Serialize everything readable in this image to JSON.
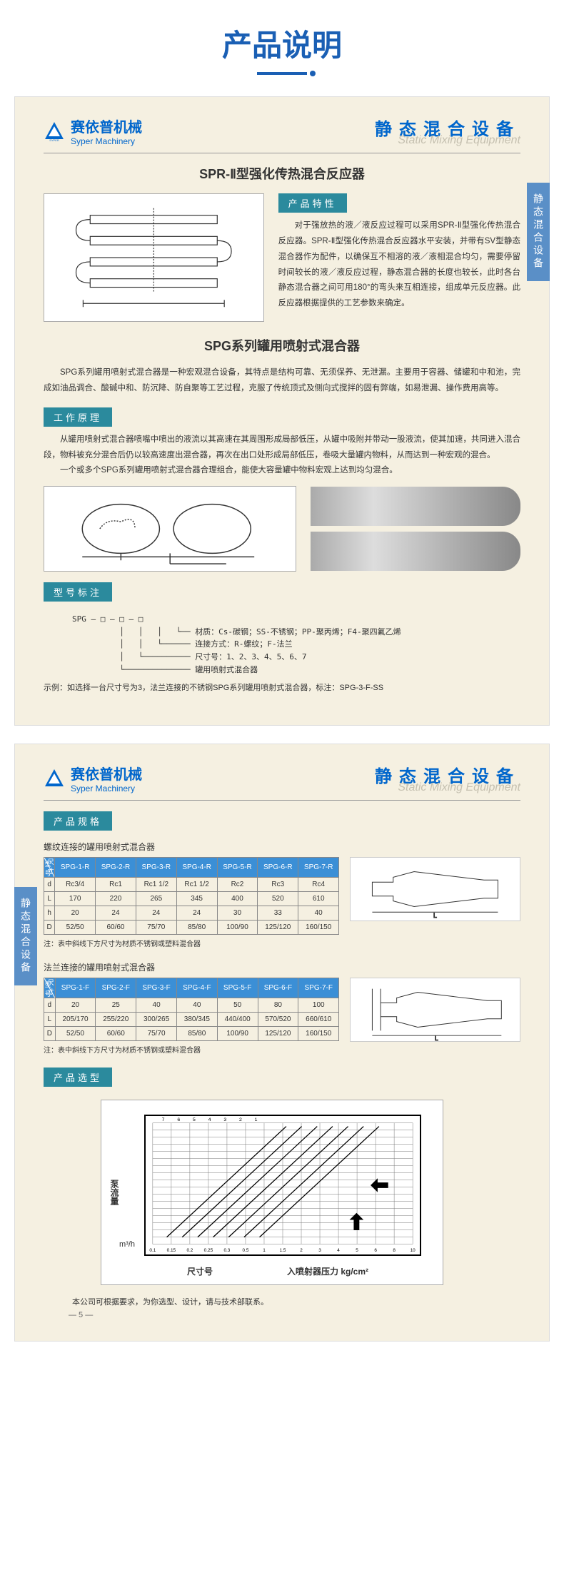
{
  "page_title": "产品说明",
  "company": {
    "name_cn": "赛依普机械",
    "name_en": "Syper Machinery",
    "label": "SYPER"
  },
  "header_title": {
    "cn": "静态混合设备",
    "en": "Static Mixing Equipment"
  },
  "side_tab": "静态混合设备",
  "page1": {
    "product_title": "SPR-Ⅱ型强化传热混合反应器",
    "features_label": "产品特性",
    "features_text": "对于强放热的液／液反应过程可以采用SPR-Ⅱ型强化传热混合反应器。SPR-Ⅱ型强化传热混合反应器水平安装，并带有SV型静态混合器作为配件，以确保互不相溶的液／液相混合均匀，需要停留时间较长的液／液反应过程，静态混合器的长度也较长，此时各台静态混合器之间可用180°的弯头来互相连接，组成单元反应器。此反应器根据提供的工艺参数来确定。",
    "spg_title": "SPG系列罐用喷射式混合器",
    "spg_intro": "SPG系列罐用喷射式混合器是一种宏观混合设备，其特点是结构可靠、无须保养、无泄漏。主要用于容器、储罐和中和池，完成如油品调合、酸碱中和、防沉降、防自聚等工艺过程，克服了传统顶式及侧向式搅拌的固有弊端，如易泄漏、操作费用高等。",
    "working_label": "工作原理",
    "working_text1": "从罐用喷射式混合器喷嘴中喷出的液流以其高速在其周围形成局部低压，从罐中吸附并带动一股液流，使其加速，共同进入混合段，物料被充分混合后仍以较高速度出混合器，再次在出口处形成局部低压，卷吸大量罐内物料，从而达到一种宏观的混合。",
    "working_text2": "一个或多个SPG系列罐用喷射式混合器合理组合，能使大容量罐中物料宏观上达到均匀混合。",
    "model_label": "型号标注",
    "model_base": "SPG",
    "model_lines": [
      "材质：Cs-碳钢；SS-不锈钢；PP-聚丙烯；F4-聚四氟乙烯",
      "连接方式：R-螺纹；F-法兰",
      "尺寸号：1、2、3、4、5、6、7",
      "罐用喷射式混合器"
    ],
    "model_example": "示例：如选择一台尺寸号为3，法兰连接的不锈钢SPG系列罐用喷射式混合器，标注：SPG-3-F-SS"
  },
  "page2": {
    "spec_label": "产品规格",
    "table1": {
      "title": "螺纹连接的罐用喷射式混合器",
      "head_type": "型号",
      "head_dim": "尺寸",
      "cols": [
        "SPG-1-R",
        "SPG-2-R",
        "SPG-3-R",
        "SPG-4-R",
        "SPG-5-R",
        "SPG-6-R",
        "SPG-7-R"
      ],
      "rows": [
        {
          "k": "d",
          "v": [
            "Rc3/4",
            "Rc1",
            "Rc1 1/2",
            "Rc1 1/2",
            "Rc2",
            "Rc3",
            "Rc4"
          ]
        },
        {
          "k": "L",
          "v": [
            "170",
            "220",
            "265",
            "345",
            "400",
            "520",
            "610"
          ]
        },
        {
          "k": "h",
          "v": [
            "20",
            "24",
            "24",
            "24",
            "30",
            "33",
            "40"
          ]
        },
        {
          "k": "D",
          "v": [
            "52/50",
            "60/60",
            "75/70",
            "85/80",
            "100/90",
            "125/120",
            "160/150"
          ]
        }
      ],
      "note": "注：表中斜线下方尺寸为材质不锈钢或塑料混合器"
    },
    "table2": {
      "title": "法兰连接的罐用喷射式混合器",
      "head_type": "型号",
      "head_dim": "尺寸",
      "cols": [
        "SPG-1-F",
        "SPG-2-F",
        "SPG-3-F",
        "SPG-4-F",
        "SPG-5-F",
        "SPG-6-F",
        "SPG-7-F"
      ],
      "rows": [
        {
          "k": "d",
          "v": [
            "20",
            "25",
            "40",
            "40",
            "50",
            "80",
            "100"
          ]
        },
        {
          "k": "L",
          "v": [
            "205/170",
            "255/220",
            "300/265",
            "380/345",
            "440/400",
            "570/520",
            "660/610"
          ]
        },
        {
          "k": "D",
          "v": [
            "52/50",
            "60/60",
            "75/70",
            "85/80",
            "100/90",
            "125/120",
            "160/150"
          ]
        }
      ],
      "note": "注：表中斜线下方尺寸为材质不锈钢或塑料混合器"
    },
    "selection_label": "产品选型",
    "chart": {
      "y_label": "泵流量",
      "y_unit": "m³/h",
      "x_label1": "尺寸号",
      "x_label2": "入喷射器压力   kg/cm²",
      "y_ticks": [
        "500",
        "400",
        "300",
        "200",
        "100",
        "80",
        "60",
        "50",
        "40",
        "30",
        "20",
        "10",
        "8",
        "6",
        "5",
        "4",
        "3",
        "2"
      ],
      "top_ticks": [
        "7",
        "6",
        "5",
        "4",
        "3",
        "2",
        "1"
      ],
      "bottom_ticks": [
        "0.1",
        "0.15",
        "0.2",
        "0.25",
        "0.3",
        "0.5",
        "1",
        "1.5",
        "2",
        "3",
        "4",
        "5",
        "6",
        "8",
        "10"
      ]
    },
    "footer_note": "本公司可根据要求，为你选型、设计，请与技术部联系。",
    "page_num": "— 5 —"
  },
  "colors": {
    "primary_blue": "#1a5fb4",
    "link_blue": "#0066cc",
    "section_teal": "#2b8a9d",
    "tab_blue": "#5a8fc7",
    "table_head": "#3b8fd6",
    "page_bg": "#f5f0e1"
  }
}
